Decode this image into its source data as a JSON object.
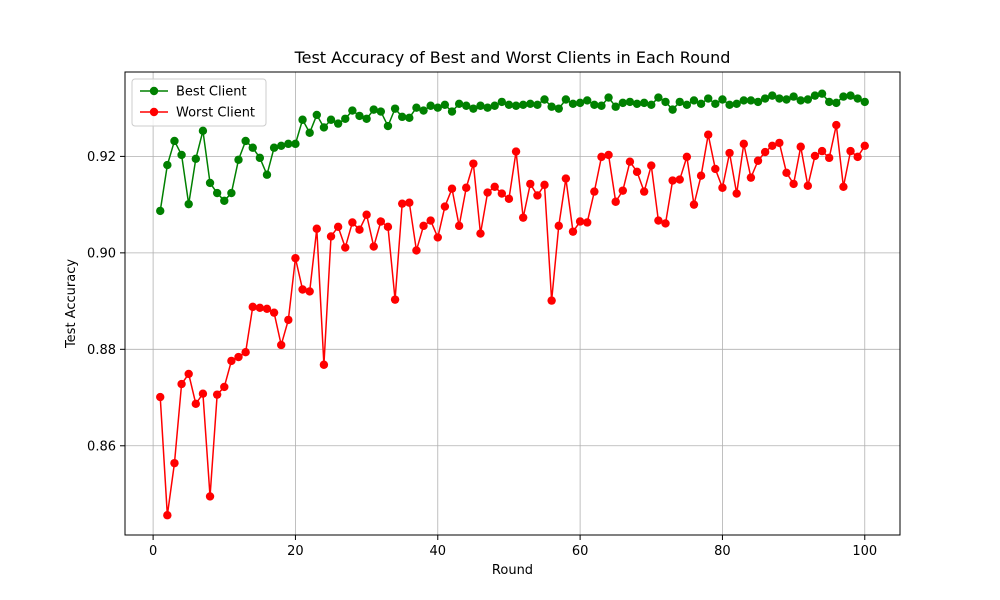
{
  "chart_data": {
    "type": "line",
    "title": "Test Accuracy of Best and Worst Clients in Each Round",
    "xlabel": "Round",
    "ylabel": "Test Accuracy",
    "xlim": [
      -3.95,
      104.95
    ],
    "ylim": [
      0.8415,
      0.9375
    ],
    "xticks": [
      0,
      20,
      40,
      60,
      80,
      100
    ],
    "yticks": [
      0.86,
      0.88,
      0.9,
      0.92
    ],
    "ytick_labels": [
      "0.86",
      "0.88",
      "0.90",
      "0.92"
    ],
    "grid": true,
    "legend": "top-left",
    "x": [
      1,
      2,
      3,
      4,
      5,
      6,
      7,
      8,
      9,
      10,
      11,
      12,
      13,
      14,
      15,
      16,
      17,
      18,
      19,
      20,
      21,
      22,
      23,
      24,
      25,
      26,
      27,
      28,
      29,
      30,
      31,
      32,
      33,
      34,
      35,
      36,
      37,
      38,
      39,
      40,
      41,
      42,
      43,
      44,
      45,
      46,
      47,
      48,
      49,
      50,
      51,
      52,
      53,
      54,
      55,
      56,
      57,
      58,
      59,
      60,
      61,
      62,
      63,
      64,
      65,
      66,
      67,
      68,
      69,
      70,
      71,
      72,
      73,
      74,
      75,
      76,
      77,
      78,
      79,
      80,
      81,
      82,
      83,
      84,
      85,
      86,
      87,
      88,
      89,
      90,
      91,
      92,
      93,
      94,
      95,
      96,
      97,
      98,
      99,
      100
    ],
    "series": [
      {
        "name": "Best Client",
        "color": "#008000",
        "values": [
          0.9087,
          0.9182,
          0.9232,
          0.9203,
          0.9101,
          0.9195,
          0.9253,
          0.9145,
          0.9124,
          0.9108,
          0.9124,
          0.9193,
          0.9232,
          0.9218,
          0.9197,
          0.9162,
          0.9218,
          0.9222,
          0.9226,
          0.9226,
          0.9276,
          0.9249,
          0.9286,
          0.926,
          0.9276,
          0.9268,
          0.9278,
          0.9295,
          0.9284,
          0.9278,
          0.9297,
          0.9293,
          0.9263,
          0.9299,
          0.9282,
          0.928,
          0.9301,
          0.9295,
          0.9305,
          0.9301,
          0.9307,
          0.9293,
          0.9309,
          0.9305,
          0.9299,
          0.9305,
          0.9301,
          0.9305,
          0.9313,
          0.9307,
          0.9305,
          0.9307,
          0.9309,
          0.9307,
          0.9318,
          0.9303,
          0.9299,
          0.9318,
          0.9309,
          0.9311,
          0.9316,
          0.9307,
          0.9305,
          0.9322,
          0.9303,
          0.9311,
          0.9313,
          0.9309,
          0.9311,
          0.9307,
          0.9322,
          0.9313,
          0.9297,
          0.9313,
          0.9307,
          0.9316,
          0.9309,
          0.932,
          0.9309,
          0.9318,
          0.9307,
          0.9309,
          0.9316,
          0.9316,
          0.9313,
          0.932,
          0.9326,
          0.932,
          0.9318,
          0.9324,
          0.9316,
          0.9318,
          0.9326,
          0.933,
          0.9313,
          0.9311,
          0.9324,
          0.9326,
          0.932,
          0.9313
        ]
      },
      {
        "name": "Worst Client",
        "color": "#ff0000",
        "values": [
          0.8701,
          0.8456,
          0.8564,
          0.8728,
          0.8749,
          0.8687,
          0.8708,
          0.8495,
          0.8706,
          0.8722,
          0.8776,
          0.8784,
          0.8794,
          0.8888,
          0.8886,
          0.8884,
          0.8876,
          0.8809,
          0.8861,
          0.8989,
          0.8924,
          0.892,
          0.905,
          0.8768,
          0.9034,
          0.9054,
          0.9011,
          0.9063,
          0.9048,
          0.9079,
          0.9013,
          0.9065,
          0.9054,
          0.8903,
          0.9102,
          0.9104,
          0.9005,
          0.9056,
          0.9067,
          0.9032,
          0.9096,
          0.9133,
          0.9056,
          0.9135,
          0.9185,
          0.904,
          0.9125,
          0.9137,
          0.9123,
          0.9112,
          0.921,
          0.9073,
          0.9143,
          0.9119,
          0.9141,
          0.8901,
          0.9056,
          0.9154,
          0.9044,
          0.9065,
          0.9063,
          0.9127,
          0.9199,
          0.9203,
          0.9106,
          0.9129,
          0.9189,
          0.9168,
          0.9127,
          0.9181,
          0.9067,
          0.9061,
          0.915,
          0.9152,
          0.9199,
          0.91,
          0.916,
          0.9245,
          0.9174,
          0.9135,
          0.9207,
          0.9123,
          0.9226,
          0.9156,
          0.9191,
          0.9209,
          0.9222,
          0.9228,
          0.9166,
          0.9143,
          0.922,
          0.9139,
          0.9201,
          0.9211,
          0.9197,
          0.9265,
          0.9137,
          0.9211,
          0.9199,
          0.9222
        ]
      }
    ]
  }
}
